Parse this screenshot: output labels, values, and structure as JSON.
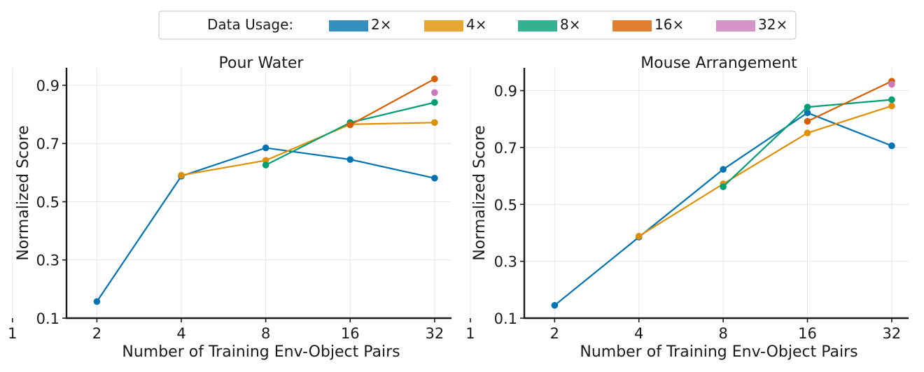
{
  "legend": {
    "title": "Data Usage:",
    "entries": [
      {
        "label": "2×",
        "color": "#0173b2"
      },
      {
        "label": "4×",
        "color": "#de8f05"
      },
      {
        "label": "8×",
        "color": "#029e73"
      },
      {
        "label": "16×",
        "color": "#d55e00"
      },
      {
        "label": "32×",
        "color": "#cc78bc"
      }
    ]
  },
  "chart_data": [
    {
      "type": "line",
      "title": "Pour Water",
      "xlabel": "Number of Training Env-Object Pairs",
      "ylabel": "Normalized Score",
      "x_scale": "log2",
      "x_ticks": [
        1,
        2,
        4,
        8,
        16,
        32
      ],
      "x_tick_labels": [
        "1",
        "2",
        "4",
        "8",
        "16",
        "32"
      ],
      "y_ticks": [
        0.1,
        0.3,
        0.5,
        0.7,
        0.9
      ],
      "y_tick_labels": [
        "0.1",
        "0.3",
        "0.5",
        "0.7",
        "0.9"
      ],
      "ylim": [
        0.1,
        0.96
      ],
      "grid": true,
      "series": [
        {
          "name": "2×",
          "color": "#0173b2",
          "x": [
            2,
            4,
            8,
            16,
            32
          ],
          "y": [
            0.157,
            0.588,
            0.685,
            0.645,
            0.581
          ]
        },
        {
          "name": "4×",
          "color": "#de8f05",
          "x": [
            4,
            8,
            16,
            32
          ],
          "y": [
            0.591,
            0.642,
            0.766,
            0.772
          ]
        },
        {
          "name": "8×",
          "color": "#029e73",
          "x": [
            8,
            16,
            32
          ],
          "y": [
            0.626,
            0.772,
            0.841
          ]
        },
        {
          "name": "16×",
          "color": "#d55e00",
          "x": [
            16,
            32
          ],
          "y": [
            0.764,
            0.922
          ]
        },
        {
          "name": "32×",
          "color": "#cc78bc",
          "x": [
            32
          ],
          "y": [
            0.875
          ]
        }
      ]
    },
    {
      "type": "line",
      "title": "Mouse Arrangement",
      "xlabel": "Number of Training Env-Object Pairs",
      "ylabel": "Normalized Score",
      "x_scale": "log2",
      "x_ticks": [
        1,
        2,
        4,
        8,
        16,
        32
      ],
      "x_tick_labels": [
        "1",
        "2",
        "4",
        "8",
        "16",
        "32"
      ],
      "y_ticks": [
        0.1,
        0.3,
        0.5,
        0.7,
        0.9
      ],
      "y_tick_labels": [
        "0.1",
        "0.3",
        "0.5",
        "0.7",
        "0.9"
      ],
      "ylim": [
        0.1,
        0.98
      ],
      "grid": true,
      "series": [
        {
          "name": "2×",
          "color": "#0173b2",
          "x": [
            2,
            4,
            8,
            16,
            32
          ],
          "y": [
            0.145,
            0.385,
            0.623,
            0.822,
            0.706
          ]
        },
        {
          "name": "4×",
          "color": "#de8f05",
          "x": [
            4,
            8,
            16,
            32
          ],
          "y": [
            0.388,
            0.572,
            0.751,
            0.846
          ]
        },
        {
          "name": "8×",
          "color": "#029e73",
          "x": [
            8,
            16,
            32
          ],
          "y": [
            0.562,
            0.842,
            0.868
          ]
        },
        {
          "name": "16×",
          "color": "#d55e00",
          "x": [
            16,
            32
          ],
          "y": [
            0.792,
            0.933
          ]
        },
        {
          "name": "32×",
          "color": "#cc78bc",
          "x": [
            32
          ],
          "y": [
            0.922
          ]
        }
      ]
    }
  ]
}
